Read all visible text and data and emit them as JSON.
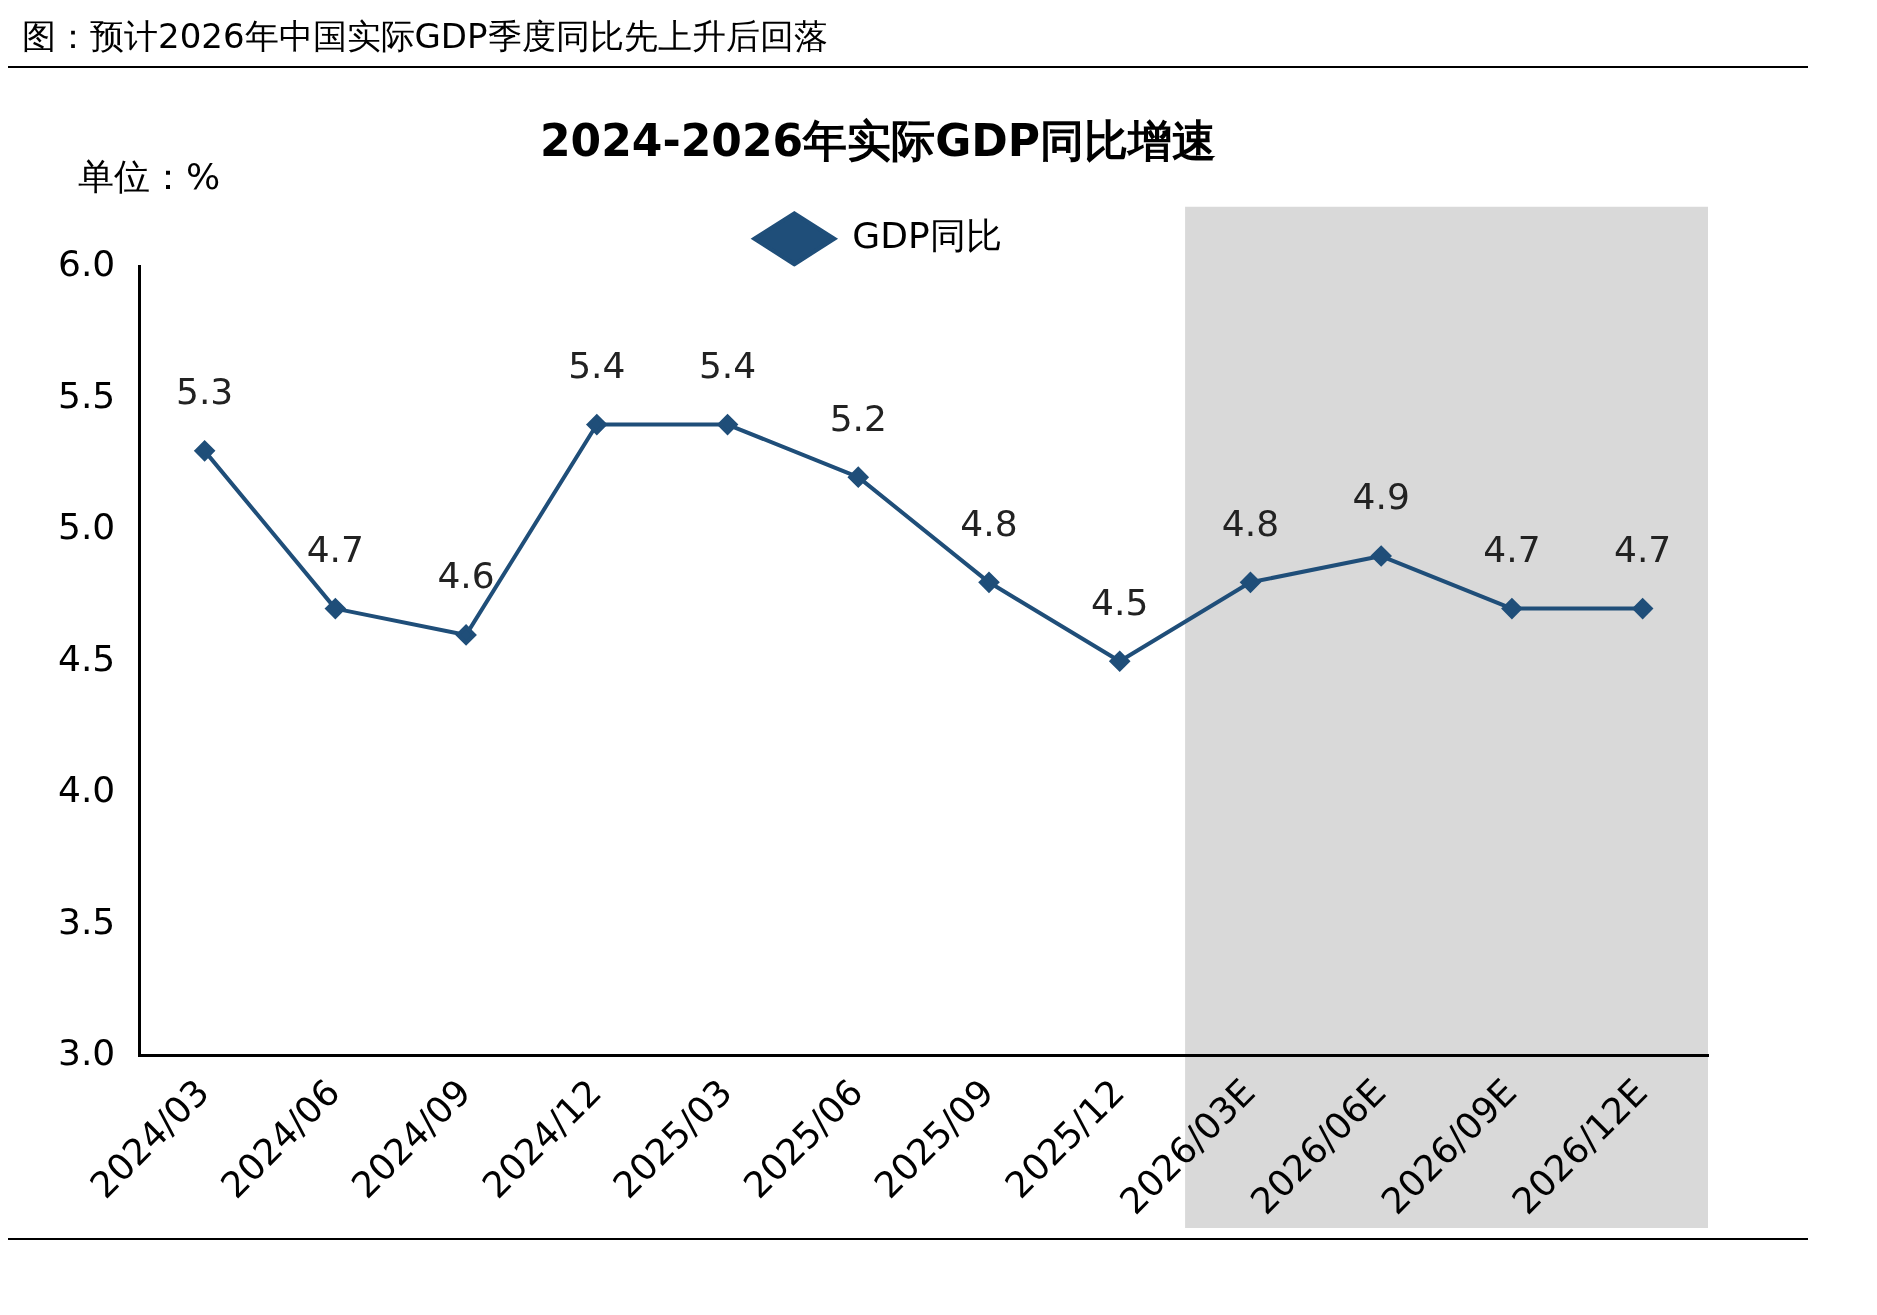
{
  "chart_data": {
    "type": "line",
    "title": "图：预计2026年中国实际GDP季度同比先上升后回落",
    "subtitle": "2024-2026年实际GDP同比增速",
    "ylabel": "单位：%",
    "categories": [
      "2024/03",
      "2024/06",
      "2024/09",
      "2024/12",
      "2025/03",
      "2025/06",
      "2025/09",
      "2025/12",
      "2026/03E",
      "2026/06E",
      "2026/09E",
      "2026/12E"
    ],
    "series": [
      {
        "name": "GDP同比",
        "color": "#1f4e79",
        "values": [
          5.3,
          4.7,
          4.6,
          5.4,
          5.4,
          5.2,
          4.8,
          4.5,
          4.8,
          4.9,
          4.7,
          4.7
        ]
      }
    ],
    "ylim": [
      3,
      6
    ],
    "yticks": [
      {
        "value": 3,
        "label": "3.0"
      },
      {
        "value": 3.5,
        "label": "3.5"
      },
      {
        "value": 4,
        "label": "4.0"
      },
      {
        "value": 4.5,
        "label": "4.5"
      },
      {
        "value": 5,
        "label": "5.0"
      },
      {
        "value": 5.5,
        "label": "5.5"
      },
      {
        "value": 6,
        "label": "6.0"
      }
    ],
    "bands": [
      {
        "axis": "x",
        "from": "2026/03E",
        "to": "2026/12E",
        "color": "#d9d9d9"
      }
    ],
    "data_labels": true,
    "grid": false,
    "legend": "top",
    "marker": "diamond",
    "line_style": "solid"
  }
}
